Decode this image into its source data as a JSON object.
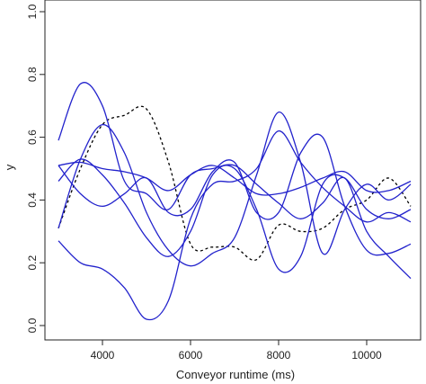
{
  "chart_data": {
    "type": "line",
    "title": "",
    "xlabel": "Conveyor runtime (ms)",
    "ylabel": "y",
    "xlim": [
      3000,
      11000
    ],
    "ylim": [
      0,
      1
    ],
    "xticks": [
      4000,
      6000,
      8000,
      10000
    ],
    "yticks": [
      0.0,
      0.2,
      0.4,
      0.6,
      0.8,
      1.0
    ],
    "ytick_labels": [
      "0.0",
      "0.2",
      "0.4",
      "0.6",
      "0.8",
      "1.0"
    ],
    "xtick_labels": [
      "4000",
      "6000",
      "8000",
      "10000"
    ],
    "grid": false,
    "colors": {
      "solid": "#2222cc",
      "dashed": "#000000"
    },
    "series": [
      {
        "style": "dashed",
        "x": [
          3000,
          3500,
          4000,
          4500,
          5000,
          5500,
          6000,
          6500,
          7000,
          7500,
          8000,
          8500,
          9000,
          9500,
          10000,
          10500,
          11000
        ],
        "y": [
          0.31,
          0.5,
          0.64,
          0.67,
          0.69,
          0.52,
          0.26,
          0.25,
          0.25,
          0.21,
          0.32,
          0.3,
          0.31,
          0.37,
          0.4,
          0.47,
          0.38
        ]
      },
      {
        "style": "solid",
        "x": [
          3000,
          3500,
          4000,
          4500,
          5000,
          5500,
          6000,
          6500,
          7000,
          7500,
          8000,
          8500,
          9000,
          9500,
          10000,
          10500,
          11000
        ],
        "y": [
          0.59,
          0.77,
          0.7,
          0.46,
          0.42,
          0.37,
          0.48,
          0.5,
          0.51,
          0.45,
          0.39,
          0.34,
          0.39,
          0.47,
          0.3,
          0.22,
          0.15
        ]
      },
      {
        "style": "solid",
        "x": [
          3000,
          3500,
          4000,
          4500,
          5000,
          5500,
          6000,
          6500,
          7000,
          7500,
          8000,
          8500,
          9000,
          9500,
          10000,
          10500,
          11000
        ],
        "y": [
          0.31,
          0.53,
          0.64,
          0.55,
          0.36,
          0.24,
          0.19,
          0.23,
          0.28,
          0.48,
          0.68,
          0.52,
          0.23,
          0.37,
          0.45,
          0.4,
          0.45
        ]
      },
      {
        "style": "solid",
        "x": [
          3000,
          3500,
          4000,
          4500,
          5000,
          5500,
          6000,
          6500,
          7000,
          7500,
          8000,
          8500,
          9000,
          9500,
          10000,
          10500,
          11000
        ],
        "y": [
          0.27,
          0.2,
          0.18,
          0.12,
          0.02,
          0.08,
          0.34,
          0.45,
          0.46,
          0.5,
          0.62,
          0.52,
          0.44,
          0.38,
          0.33,
          0.36,
          0.33
        ]
      },
      {
        "style": "solid",
        "x": [
          3000,
          3500,
          4000,
          4500,
          5000,
          5500,
          6000,
          6500,
          7000,
          7500,
          8000,
          8500,
          9000,
          9500,
          10000,
          10500,
          11000
        ],
        "y": [
          0.46,
          0.53,
          0.48,
          0.39,
          0.28,
          0.22,
          0.3,
          0.48,
          0.5,
          0.37,
          0.18,
          0.22,
          0.45,
          0.47,
          0.37,
          0.34,
          0.37
        ]
      },
      {
        "style": "solid",
        "x": [
          3000,
          3500,
          4000,
          4500,
          5000,
          5500,
          6000,
          6500,
          7000,
          7500,
          8000,
          8500,
          9000,
          9500,
          10000,
          10500,
          11000
        ],
        "y": [
          0.51,
          0.42,
          0.38,
          0.42,
          0.47,
          0.36,
          0.37,
          0.49,
          0.52,
          0.36,
          0.36,
          0.55,
          0.6,
          0.38,
          0.24,
          0.23,
          0.26
        ]
      },
      {
        "style": "solid",
        "x": [
          3000,
          3500,
          4000,
          4500,
          5000,
          5500,
          6000,
          6500,
          7000,
          7500,
          8000,
          8500,
          9000,
          9500,
          10000,
          10500,
          11000
        ],
        "y": [
          0.51,
          0.52,
          0.5,
          0.49,
          0.47,
          0.43,
          0.48,
          0.51,
          0.47,
          0.42,
          0.42,
          0.44,
          0.47,
          0.49,
          0.43,
          0.43,
          0.46
        ]
      }
    ]
  }
}
